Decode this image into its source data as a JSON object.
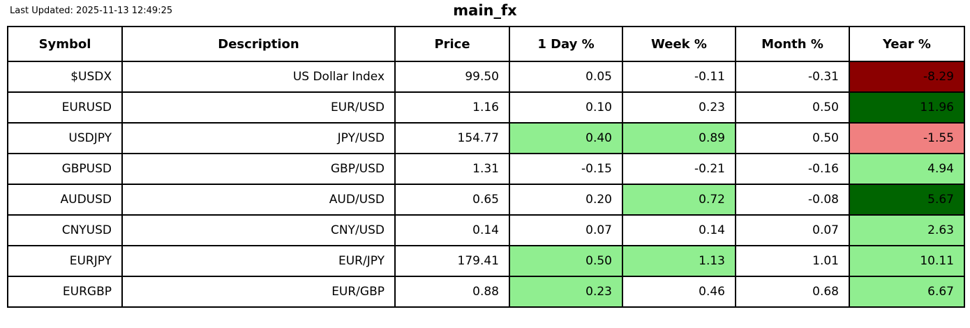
{
  "chart_data": {
    "type": "table",
    "title": "main_fx",
    "annotation": "Last Updated: 2025-11-13 12:49:25",
    "columns": [
      "Symbol",
      "Description",
      "Price",
      "1 Day %",
      "Week %",
      "Month %",
      "Year %"
    ],
    "column_keys": [
      "symbol",
      "description",
      "price",
      "day-pct",
      "week-pct",
      "month-pct",
      "year-pct"
    ],
    "rows": [
      {
        "cells": [
          "$USDX",
          "US Dollar Index",
          "99.50",
          "0.05",
          "-0.11",
          "-0.31",
          "-8.29"
        ],
        "bg": [
          null,
          null,
          null,
          null,
          null,
          null,
          "strong_loss"
        ]
      },
      {
        "cells": [
          "EURUSD",
          "EUR/USD",
          "1.16",
          "0.10",
          "0.23",
          "0.50",
          "11.96"
        ],
        "bg": [
          null,
          null,
          null,
          null,
          null,
          null,
          "strong_gain"
        ]
      },
      {
        "cells": [
          "USDJPY",
          "JPY/USD",
          "154.77",
          "0.40",
          "0.89",
          "0.50",
          "-1.55"
        ],
        "bg": [
          null,
          null,
          null,
          "gain",
          "gain",
          null,
          "loss"
        ]
      },
      {
        "cells": [
          "GBPUSD",
          "GBP/USD",
          "1.31",
          "-0.15",
          "-0.21",
          "-0.16",
          "4.94"
        ],
        "bg": [
          null,
          null,
          null,
          null,
          null,
          null,
          "gain"
        ]
      },
      {
        "cells": [
          "AUDUSD",
          "AUD/USD",
          "0.65",
          "0.20",
          "0.72",
          "-0.08",
          "5.67"
        ],
        "bg": [
          null,
          null,
          null,
          null,
          "gain",
          null,
          "strong_gain"
        ]
      },
      {
        "cells": [
          "CNYUSD",
          "CNY/USD",
          "0.14",
          "0.07",
          "0.14",
          "0.07",
          "2.63"
        ],
        "bg": [
          null,
          null,
          null,
          null,
          null,
          null,
          "gain"
        ]
      },
      {
        "cells": [
          "EURJPY",
          "EUR/JPY",
          "179.41",
          "0.50",
          "1.13",
          "1.01",
          "10.11"
        ],
        "bg": [
          null,
          null,
          null,
          "gain",
          "gain",
          null,
          "gain"
        ]
      },
      {
        "cells": [
          "EURGBP",
          "EUR/GBP",
          "0.88",
          "0.23",
          "0.46",
          "0.68",
          "6.67"
        ],
        "bg": [
          null,
          null,
          null,
          "gain",
          null,
          null,
          "gain"
        ]
      }
    ],
    "cell_colors": {
      "strong_gain": "#006400",
      "gain": "#90EE90",
      "loss": "#F08080",
      "strong_loss": "#8B0000",
      "neutral": "#FFFFFF"
    },
    "style": {
      "border_color": "#000000",
      "text_color": "#000000",
      "background": "#FFFFFF"
    }
  }
}
